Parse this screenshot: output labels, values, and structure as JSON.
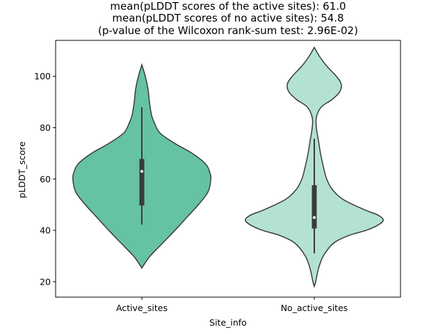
{
  "chart_data": {
    "type": "violin",
    "title_lines": [
      "mean(pLDDT scores of the active sites): 61.0",
      "mean(pLDDT scores of no active sites): 54.8",
      "(p-value of the Wilcoxon rank-sum test: 2.96E-02)"
    ],
    "xlabel": "Site_info",
    "ylabel": "pLDDT_score",
    "ylim": [
      14,
      114
    ],
    "yticks": [
      20,
      40,
      60,
      80,
      100
    ],
    "categories": [
      "Active_sites",
      "No_active_sites"
    ],
    "grid": false,
    "series": [
      {
        "category": "Active_sites",
        "color": "#66c2a5",
        "min": 42.3,
        "q1": 49.7,
        "median": 63.0,
        "q3": 67.8,
        "max": 88.0,
        "density": [
          [
            25.3,
            0.0
          ],
          [
            27,
            0.04
          ],
          [
            30,
            0.12
          ],
          [
            35,
            0.3
          ],
          [
            40,
            0.48
          ],
          [
            45,
            0.65
          ],
          [
            50,
            0.82
          ],
          [
            55,
            0.96
          ],
          [
            60,
            1.0
          ],
          [
            63,
            0.98
          ],
          [
            66,
            0.92
          ],
          [
            70,
            0.73
          ],
          [
            74,
            0.47
          ],
          [
            78,
            0.26
          ],
          [
            82,
            0.18
          ],
          [
            85,
            0.14
          ],
          [
            90,
            0.11
          ],
          [
            95,
            0.09
          ],
          [
            100,
            0.05
          ],
          [
            104.5,
            0.0
          ]
        ]
      },
      {
        "category": "No_active_sites",
        "color": "#b3e2d4",
        "min": 31.0,
        "q1": 40.7,
        "median": 45.0,
        "q3": 57.6,
        "max": 75.7,
        "density": [
          [
            18.2,
            0.0
          ],
          [
            20,
            0.02
          ],
          [
            25,
            0.06
          ],
          [
            30,
            0.13
          ],
          [
            35,
            0.28
          ],
          [
            38,
            0.5
          ],
          [
            40,
            0.75
          ],
          [
            42,
            0.92
          ],
          [
            44,
            1.0
          ],
          [
            46,
            0.92
          ],
          [
            48,
            0.73
          ],
          [
            52,
            0.42
          ],
          [
            56,
            0.26
          ],
          [
            60,
            0.18
          ],
          [
            65,
            0.13
          ],
          [
            70,
            0.09
          ],
          [
            75,
            0.06
          ],
          [
            80,
            0.03
          ],
          [
            84,
            0.03
          ],
          [
            88,
            0.1
          ],
          [
            91,
            0.26
          ],
          [
            94,
            0.37
          ],
          [
            97,
            0.39
          ],
          [
            100,
            0.32
          ],
          [
            104,
            0.18
          ],
          [
            108,
            0.07
          ],
          [
            111.3,
            0.0
          ]
        ]
      }
    ]
  }
}
